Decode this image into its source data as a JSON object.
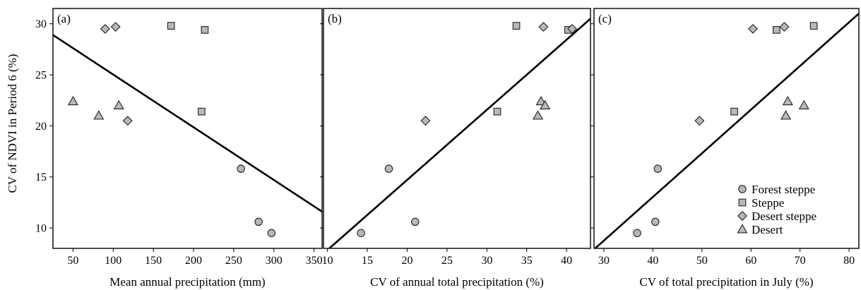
{
  "chart_data": [
    {
      "type": "scatter",
      "panel_label": "(a)",
      "xlabel": "Mean annual precipitation (mm)",
      "ylabel": "CV of NDVI in Period 6 (%)",
      "xlim": [
        25,
        360
      ],
      "ylim": [
        8,
        31.5
      ],
      "xticks": [
        50,
        100,
        150,
        200,
        250,
        300,
        350
      ],
      "yticks": [
        10,
        15,
        20,
        25,
        30
      ],
      "fit_line": [
        [
          25,
          28.9
        ],
        [
          360,
          11.6
        ]
      ],
      "series": [
        {
          "name": "Forest steppe",
          "marker": "circle",
          "points": [
            [
              259,
              15.8
            ],
            [
              281,
              10.6
            ],
            [
              297,
              9.5
            ]
          ]
        },
        {
          "name": "Steppe",
          "marker": "square",
          "points": [
            [
              172,
              29.8
            ],
            [
              214,
              29.4
            ],
            [
              210,
              21.4
            ]
          ]
        },
        {
          "name": "Desert steppe",
          "marker": "diamond",
          "points": [
            [
              90,
              29.5
            ],
            [
              103,
              29.7
            ],
            [
              118,
              20.5
            ]
          ]
        },
        {
          "name": "Desert",
          "marker": "triangle",
          "points": [
            [
              50,
              22.4
            ],
            [
              82,
              21.0
            ],
            [
              107,
              22.0
            ]
          ]
        }
      ]
    },
    {
      "type": "scatter",
      "panel_label": "(b)",
      "xlabel": "CV of annual total precipitation (%)",
      "ylabel": "",
      "xlim": [
        9.5,
        43
      ],
      "ylim": [
        8,
        31.5
      ],
      "xticks": [
        10,
        15,
        20,
        25,
        30,
        35,
        40
      ],
      "yticks": [
        10,
        15,
        20,
        25,
        30
      ],
      "fit_line": [
        [
          9.5,
          7.5
        ],
        [
          43,
          30.5
        ]
      ],
      "series": [
        {
          "name": "Forest steppe",
          "marker": "circle",
          "points": [
            [
              17.7,
              15.8
            ],
            [
              21.0,
              10.6
            ],
            [
              14.2,
              9.5
            ]
          ]
        },
        {
          "name": "Steppe",
          "marker": "square",
          "points": [
            [
              33.7,
              29.8
            ],
            [
              40.2,
              29.4
            ],
            [
              31.3,
              21.4
            ]
          ]
        },
        {
          "name": "Desert steppe",
          "marker": "diamond",
          "points": [
            [
              37.1,
              29.7
            ],
            [
              40.7,
              29.5
            ],
            [
              22.3,
              20.5
            ]
          ]
        },
        {
          "name": "Desert",
          "marker": "triangle",
          "points": [
            [
              36.8,
              22.4
            ],
            [
              37.3,
              22.0
            ],
            [
              36.4,
              21.0
            ]
          ]
        }
      ]
    },
    {
      "type": "scatter",
      "panel_label": "(c)",
      "xlabel": "CV of total precipitation in July (%)",
      "ylabel": "",
      "xlim": [
        28,
        82
      ],
      "ylim": [
        8,
        31.5
      ],
      "xticks": [
        30,
        40,
        50,
        60,
        70,
        80
      ],
      "yticks": [
        10,
        15,
        20,
        25,
        30
      ],
      "fit_line": [
        [
          28,
          7.9
        ],
        [
          82,
          31.0
        ]
      ],
      "legend": {
        "placement": "bottom-right",
        "entries": [
          {
            "name": "Forest steppe",
            "marker": "circle"
          },
          {
            "name": "Steppe",
            "marker": "square"
          },
          {
            "name": "Desert steppe",
            "marker": "diamond"
          },
          {
            "name": "Desert",
            "marker": "triangle"
          }
        ]
      },
      "series": [
        {
          "name": "Forest steppe",
          "marker": "circle",
          "points": [
            [
              41.0,
              15.8
            ],
            [
              40.5,
              10.6
            ],
            [
              36.8,
              9.5
            ]
          ]
        },
        {
          "name": "Steppe",
          "marker": "square",
          "points": [
            [
              65.2,
              29.4
            ],
            [
              72.8,
              29.8
            ],
            [
              56.6,
              21.4
            ]
          ]
        },
        {
          "name": "Desert steppe",
          "marker": "diamond",
          "points": [
            [
              60.4,
              29.5
            ],
            [
              66.8,
              29.7
            ],
            [
              49.5,
              20.5
            ]
          ]
        },
        {
          "name": "Desert",
          "marker": "triangle",
          "points": [
            [
              67.5,
              22.4
            ],
            [
              70.8,
              22.0
            ],
            [
              67.1,
              21.0
            ]
          ]
        }
      ]
    }
  ]
}
